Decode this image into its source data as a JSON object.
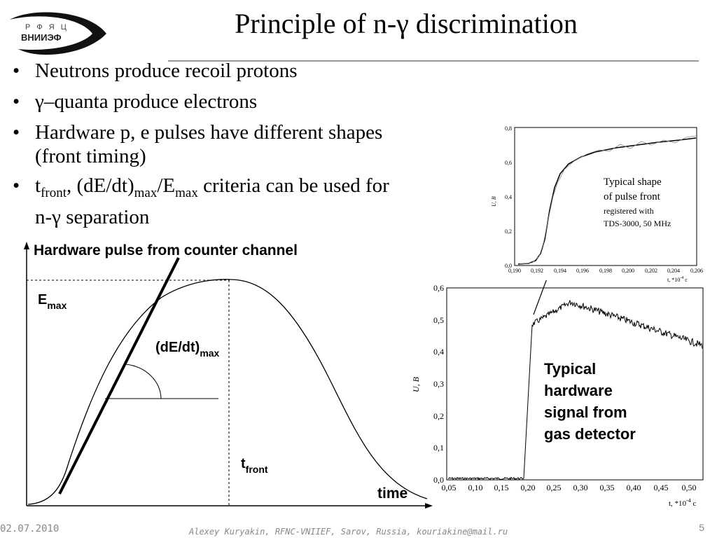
{
  "logo": {
    "line1": "Р Ф Я Ц",
    "line2": "ВНИИЭФ"
  },
  "title": "Principle of n-γ discrimination",
  "bullets": [
    {
      "text": "Neutrons produce recoil protons"
    },
    {
      "text": "γ–quanta produce electrons"
    },
    {
      "line1": "Hardware p, e pulses have different shapes",
      "line2": "(front timing)"
    },
    {
      "t": "t",
      "t_sub": "front",
      "mid": ", (dE/dt)",
      "mid_sub": "max",
      "e": "/E",
      "e_sub": "max",
      "rest": " criteria can be used for",
      "line2": "n-γ separation"
    }
  ],
  "diagram": {
    "heading": "Hardware pulse from counter channel",
    "emax": "E",
    "emax_sub": "max",
    "dedt": "(dE/dt)",
    "dedt_sub": "max",
    "tfront": "t",
    "tfront_sub": "front",
    "time": "time"
  },
  "small_plot": {
    "y_ticks": [
      "0,0",
      "0,2",
      "0,4",
      "0,6",
      "0,8"
    ],
    "x_ticks": [
      "0,190",
      "0,192",
      "0,194",
      "0,196",
      "0,198",
      "0,200",
      "0,202",
      "0,204",
      "0,206"
    ],
    "ylabel": "U, В",
    "xlabel": "t, *10",
    "xlabel_exp": "-4",
    "xlabel_unit": " с",
    "note": [
      "Typical shape",
      "of pulse front",
      "registered with",
      "TDS-3000, 50 MHz"
    ]
  },
  "big_plot": {
    "y_ticks": [
      "0,0",
      "0,1",
      "0,2",
      "0,3",
      "0,4",
      "0,5",
      "0,6"
    ],
    "x_ticks": [
      "0,05",
      "0,10",
      "0,15",
      "0,20",
      "0,25",
      "0,30",
      "0,35",
      "0,40",
      "0,45",
      "0,50"
    ],
    "ylabel": "U, В",
    "xlabel": "t, *10",
    "xlabel_exp": "-4",
    "xlabel_unit": " с",
    "note": [
      "Typical",
      "hardware",
      "signal from",
      "gas detector"
    ]
  },
  "footer": {
    "date": "02.07.2010",
    "author": "Alexey Kuryakin, RFNC-VNIIEF, Sarov, Russia, kouriakine@mail.ru",
    "page": "5"
  }
}
